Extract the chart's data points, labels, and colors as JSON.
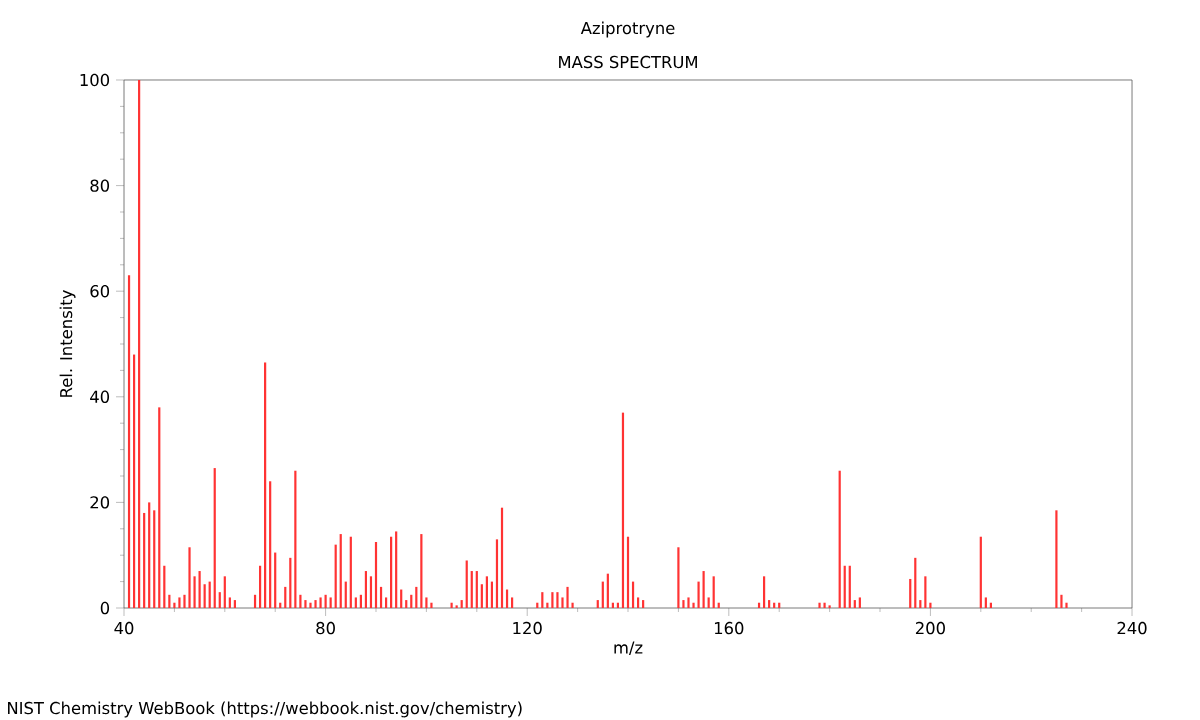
{
  "chart_data": {
    "type": "bar",
    "title": "Aziprotryne",
    "subtitle": "MASS SPECTRUM",
    "xlabel": "m/z",
    "ylabel": "Rel. Intensity",
    "annotations": [
      "NIST Chemistry WebBook (https://webbook.nist.gov/chemistry)"
    ],
    "x": [
      41,
      42,
      43,
      44,
      45,
      46,
      47,
      48,
      49,
      50,
      51,
      52,
      53,
      54,
      55,
      56,
      57,
      58,
      59,
      60,
      61,
      62,
      66,
      67,
      68,
      69,
      70,
      71,
      72,
      73,
      74,
      75,
      76,
      77,
      78,
      79,
      80,
      81,
      82,
      83,
      84,
      85,
      86,
      87,
      88,
      89,
      90,
      91,
      92,
      93,
      94,
      95,
      96,
      97,
      98,
      99,
      100,
      101,
      105,
      106,
      107,
      108,
      109,
      110,
      111,
      112,
      113,
      114,
      115,
      116,
      117,
      122,
      123,
      124,
      125,
      126,
      127,
      128,
      129,
      134,
      135,
      136,
      137,
      138,
      139,
      140,
      141,
      142,
      143,
      150,
      151,
      152,
      153,
      154,
      155,
      156,
      157,
      158,
      166,
      167,
      168,
      169,
      170,
      178,
      179,
      180,
      182,
      183,
      184,
      185,
      186,
      196,
      197,
      198,
      199,
      200,
      210,
      211,
      212,
      225,
      226,
      227
    ],
    "values": [
      63,
      48,
      100,
      18,
      20,
      18.5,
      38,
      8,
      2.5,
      1,
      2,
      2.5,
      11.5,
      6,
      7,
      4.5,
      5,
      26.5,
      3,
      6,
      2,
      1.5,
      2.5,
      8,
      46.5,
      24,
      10.5,
      1,
      4,
      9.5,
      26,
      2.5,
      1.5,
      1,
      1.5,
      2,
      2.5,
      2,
      12,
      14,
      5,
      13.5,
      2,
      2.5,
      7,
      6,
      12.5,
      4,
      2,
      13.5,
      14.5,
      3.5,
      1.5,
      2.5,
      4,
      14,
      2,
      1,
      1,
      0.5,
      1.5,
      9,
      7,
      7,
      4.5,
      6,
      5,
      13,
      19,
      3.5,
      2,
      1,
      3,
      1,
      3,
      3,
      2,
      4,
      1,
      1.5,
      5,
      6.5,
      1,
      1,
      37,
      13.5,
      5,
      2,
      1.5,
      11.5,
      1.5,
      2,
      1,
      5,
      7,
      2,
      6,
      1,
      1,
      6,
      1.5,
      1,
      1,
      1,
      1,
      0.5,
      26,
      8,
      8,
      1.5,
      2,
      5.5,
      9.5,
      1.5,
      6,
      1,
      13.5,
      2,
      1,
      18.5,
      2.5,
      1
    ],
    "color": "#ff3333",
    "xlim": [
      40,
      240
    ],
    "ylim": [
      0,
      100
    ],
    "xticks": [
      40,
      80,
      120,
      160,
      200,
      240
    ],
    "yticks": [
      0,
      20,
      40,
      60,
      80,
      100
    ],
    "grid": false
  }
}
